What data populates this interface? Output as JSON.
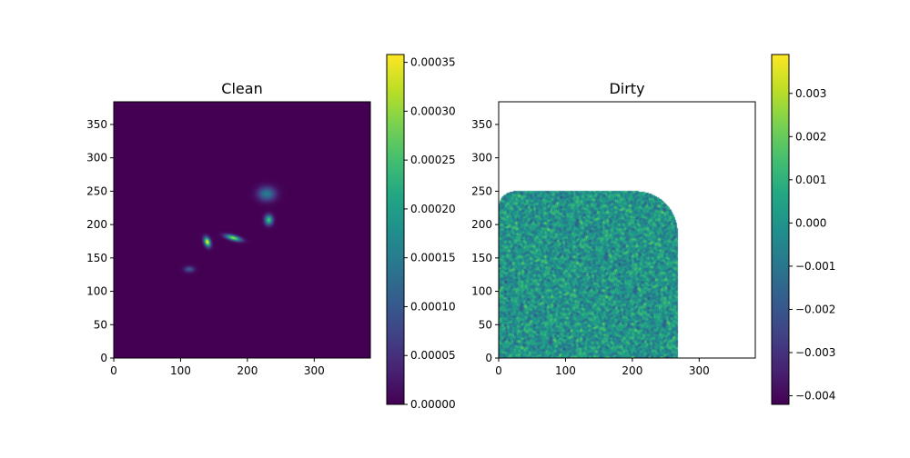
{
  "chart_data": [
    {
      "type": "heatmap",
      "title": "Clean",
      "xlim": [
        0,
        384
      ],
      "ylim": [
        0,
        384
      ],
      "xticks": [
        0,
        100,
        200,
        300
      ],
      "xtick_labels": [
        "0",
        "100",
        "200",
        "300"
      ],
      "yticks": [
        0,
        50,
        100,
        150,
        200,
        250,
        300,
        350
      ],
      "ytick_labels": [
        "0",
        "50",
        "100",
        "150",
        "200",
        "250",
        "300",
        "350"
      ],
      "colormap": "viridis",
      "background_value": 0.0,
      "sources": [
        {
          "x": 229,
          "y": 246,
          "sx": 9,
          "sy": 7,
          "rot": 0,
          "peak": 0.00015
        },
        {
          "x": 232,
          "y": 207,
          "sx": 4,
          "sy": 5,
          "rot": 0,
          "peak": 0.00026
        },
        {
          "x": 179,
          "y": 180,
          "sx": 8,
          "sy": 2.5,
          "rot": -15,
          "peak": 0.00031
        },
        {
          "x": 140,
          "y": 174,
          "sx": 3,
          "sy": 5,
          "rot": 20,
          "peak": 0.00036
        },
        {
          "x": 113,
          "y": 133,
          "sx": 5,
          "sy": 3,
          "rot": 0,
          "peak": 0.0001
        }
      ],
      "colorbar": {
        "min": 0.0,
        "max": 0.000358,
        "ticks": [
          0.0,
          5e-05,
          0.0001,
          0.00015,
          0.0002,
          0.00025,
          0.0003,
          0.00035
        ],
        "tick_labels": [
          "0.00000",
          "0.00005",
          "0.00010",
          "0.00015",
          "0.00020",
          "0.00025",
          "0.00030",
          "0.00035"
        ]
      }
    },
    {
      "type": "heatmap",
      "title": "Dirty",
      "xlim": [
        0,
        384
      ],
      "ylim": [
        0,
        384
      ],
      "xticks": [
        0,
        100,
        200,
        300
      ],
      "xtick_labels": [
        "0",
        "100",
        "200",
        "300"
      ],
      "yticks": [
        0,
        50,
        100,
        150,
        200,
        250,
        300,
        350
      ],
      "ytick_labels": [
        "0",
        "50",
        "100",
        "150",
        "200",
        "250",
        "300",
        "350"
      ],
      "colormap": "viridis",
      "data_region": {
        "x_max": 268,
        "y_max": 250,
        "corner_radius": 62,
        "top_left_rounding": 24
      },
      "noise_mean": 0.0,
      "noise_std": 0.0012,
      "outside_value": "blank",
      "colorbar": {
        "min": -0.0042,
        "max": 0.0039,
        "ticks": [
          -0.004,
          -0.003,
          -0.002,
          -0.001,
          0.0,
          0.001,
          0.002,
          0.003
        ],
        "tick_labels": [
          "−0.004",
          "−0.003",
          "−0.002",
          "−0.001",
          "0.000",
          "0.001",
          "0.002",
          "0.003"
        ]
      }
    }
  ]
}
